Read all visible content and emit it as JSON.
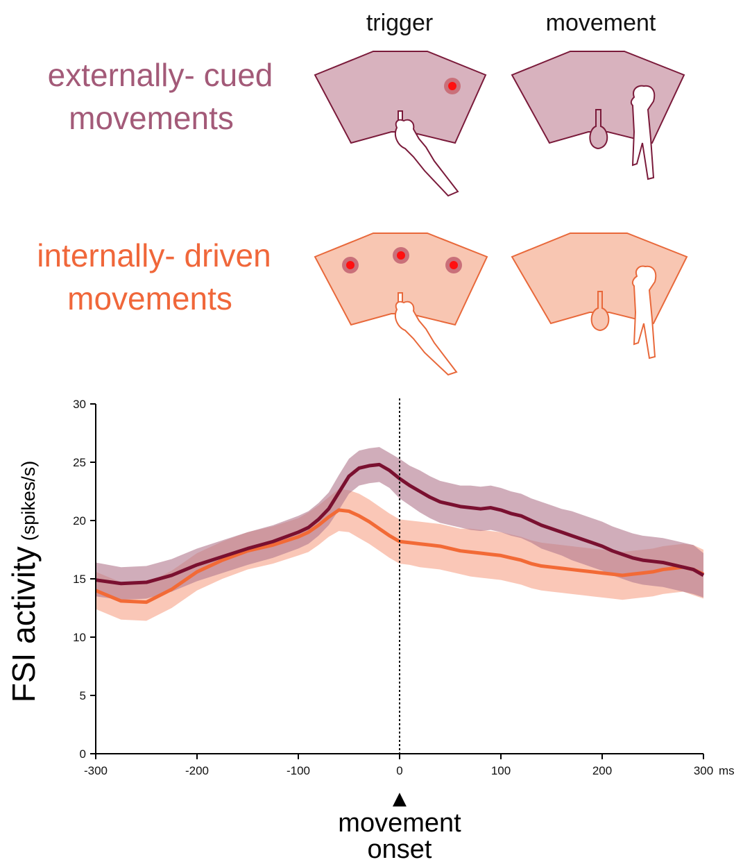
{
  "header": {
    "col_trigger": "trigger",
    "col_movement": "movement"
  },
  "conditions": [
    {
      "line1": "externally- cued",
      "line2": "movements",
      "color": "#a35a78"
    },
    {
      "line1": "internally- driven",
      "line2": "movements",
      "color": "#f0673a"
    }
  ],
  "chart_data": {
    "type": "line",
    "title": "",
    "xlabel": "",
    "x_unit": "ms",
    "ylabel": "FSI activity",
    "ylabel_unit": "(spikes/s)",
    "xlim": [
      -300,
      300
    ],
    "ylim": [
      0,
      30
    ],
    "x_ticks": [
      -300,
      -200,
      -100,
      0,
      100,
      200,
      300
    ],
    "y_ticks": [
      0,
      5,
      10,
      15,
      20,
      25,
      30
    ],
    "grid": false,
    "vline": {
      "x": 0,
      "style": "dotted"
    },
    "annotation": {
      "marker": "▲",
      "line1": "movement",
      "line2": "onset",
      "x": 0
    },
    "x": [
      -300,
      -275,
      -250,
      -225,
      -200,
      -175,
      -150,
      -125,
      -100,
      -90,
      -80,
      -70,
      -60,
      -50,
      -40,
      -30,
      -20,
      -10,
      0,
      10,
      20,
      30,
      40,
      50,
      60,
      70,
      80,
      90,
      100,
      110,
      120,
      130,
      140,
      150,
      160,
      170,
      180,
      190,
      200,
      210,
      220,
      230,
      240,
      250,
      260,
      270,
      280,
      290,
      300
    ],
    "series": [
      {
        "condition": "externally-cued",
        "color": "#7a1030",
        "band_color": "#b37a90",
        "values": [
          14.9,
          14.6,
          14.7,
          15.3,
          16.2,
          16.9,
          17.6,
          18.2,
          19.0,
          19.4,
          20.1,
          21.0,
          22.4,
          23.8,
          24.5,
          24.7,
          24.8,
          24.3,
          23.6,
          23.0,
          22.5,
          22.0,
          21.6,
          21.4,
          21.2,
          21.1,
          21.0,
          21.1,
          20.9,
          20.6,
          20.4,
          20.0,
          19.6,
          19.3,
          19.0,
          18.7,
          18.4,
          18.1,
          17.8,
          17.4,
          17.1,
          16.8,
          16.6,
          16.5,
          16.4,
          16.2,
          16.0,
          15.8,
          15.3
        ],
        "lower": [
          13.5,
          13.2,
          13.3,
          13.9,
          14.8,
          15.5,
          16.2,
          16.8,
          17.6,
          18.0,
          18.7,
          19.6,
          20.9,
          22.3,
          23.0,
          23.2,
          23.3,
          22.8,
          21.9,
          21.3,
          20.7,
          20.2,
          19.8,
          19.6,
          19.4,
          19.2,
          19.1,
          19.2,
          19.0,
          18.7,
          18.5,
          18.1,
          17.6,
          17.3,
          17.0,
          16.6,
          16.3,
          16.0,
          15.7,
          15.3,
          15.0,
          14.7,
          14.5,
          14.4,
          14.3,
          14.1,
          13.9,
          13.7,
          13.4
        ],
        "upper": [
          16.4,
          16.0,
          16.1,
          16.7,
          17.6,
          18.3,
          19.0,
          19.6,
          20.4,
          20.8,
          21.5,
          22.4,
          23.9,
          25.3,
          26.0,
          26.2,
          26.3,
          25.8,
          25.3,
          24.7,
          24.3,
          23.8,
          23.4,
          23.2,
          23.0,
          23.0,
          22.9,
          23.0,
          22.8,
          22.5,
          22.3,
          21.9,
          21.6,
          21.3,
          21.0,
          20.8,
          20.5,
          20.2,
          19.9,
          19.5,
          19.2,
          18.9,
          18.7,
          18.6,
          18.5,
          18.3,
          18.1,
          17.9,
          17.2
        ]
      },
      {
        "condition": "internally-driven",
        "color": "#f26a36",
        "band_color": "#f7a58a",
        "values": [
          14.0,
          13.1,
          13.0,
          14.1,
          15.6,
          16.6,
          17.4,
          17.9,
          18.6,
          19.0,
          19.6,
          20.3,
          20.9,
          20.8,
          20.4,
          19.9,
          19.3,
          18.7,
          18.2,
          18.1,
          18.0,
          17.9,
          17.8,
          17.6,
          17.4,
          17.3,
          17.2,
          17.1,
          17.0,
          16.8,
          16.6,
          16.3,
          16.1,
          16.0,
          15.9,
          15.8,
          15.7,
          15.6,
          15.5,
          15.4,
          15.3,
          15.4,
          15.5,
          15.6,
          15.8,
          15.9,
          16.0,
          15.8,
          15.4
        ],
        "lower": [
          12.4,
          11.5,
          11.4,
          12.5,
          14.0,
          15.0,
          15.8,
          16.3,
          17.0,
          17.3,
          17.9,
          18.6,
          19.1,
          19.0,
          18.5,
          18.0,
          17.4,
          16.8,
          16.3,
          16.2,
          16.0,
          15.9,
          15.8,
          15.6,
          15.4,
          15.2,
          15.1,
          15.0,
          14.9,
          14.7,
          14.5,
          14.2,
          14.0,
          13.9,
          13.8,
          13.7,
          13.6,
          13.5,
          13.4,
          13.3,
          13.2,
          13.3,
          13.4,
          13.5,
          13.7,
          13.8,
          13.9,
          13.6,
          13.3
        ],
        "upper": [
          15.6,
          14.7,
          14.6,
          15.7,
          17.2,
          18.2,
          19.0,
          19.5,
          20.2,
          20.7,
          21.3,
          22.0,
          22.7,
          22.6,
          22.3,
          21.8,
          21.2,
          20.6,
          20.1,
          20.0,
          19.9,
          19.8,
          19.7,
          19.5,
          19.3,
          19.3,
          19.2,
          19.1,
          19.0,
          18.8,
          18.6,
          18.3,
          18.1,
          18.0,
          17.9,
          17.8,
          17.7,
          17.6,
          17.5,
          17.4,
          17.3,
          17.4,
          17.5,
          17.6,
          17.8,
          17.9,
          18.0,
          17.9,
          17.5
        ]
      }
    ]
  }
}
